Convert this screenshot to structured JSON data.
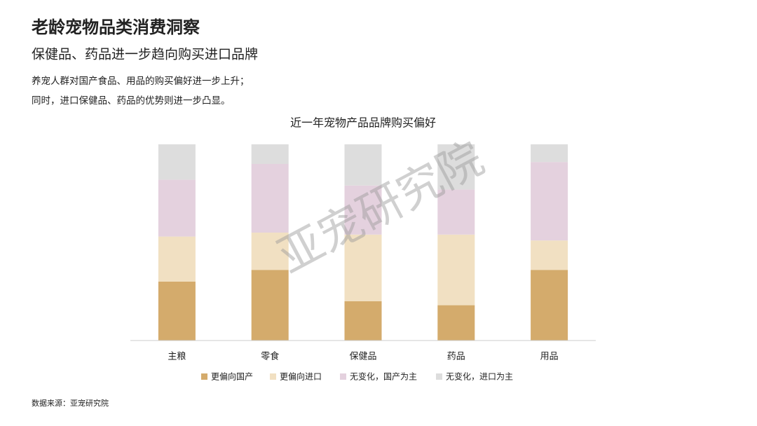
{
  "header": {
    "title": "老龄宠物品类消费洞察",
    "subtitle": "保健品、药品进一步趋向购买进口品牌",
    "lines": [
      "养宠人群对国产食品、用品的购买偏好进一步上升；",
      "同时，进口保健品、药品的优势则进一步凸显。"
    ]
  },
  "chart_data": {
    "type": "stacked_bar",
    "title": "近一年宠物产品品牌购买偏好",
    "categories": [
      "主粮",
      "零食",
      "保健品",
      "药品",
      "用品"
    ],
    "ylim": [
      0,
      100
    ],
    "series": [
      {
        "name": "更偏向国产",
        "color": "#d4ab6c",
        "values": [
          30,
          36,
          20,
          18,
          36
        ]
      },
      {
        "name": "更偏向进口",
        "color": "#f1e0c2",
        "values": [
          23,
          19,
          34,
          36,
          15
        ]
      },
      {
        "name": "无变化，国产为主",
        "color": "#e4d1de",
        "values": [
          29,
          35,
          25,
          23,
          40
        ]
      },
      {
        "name": "无变化，进口为主",
        "color": "#dddddd",
        "values": [
          18,
          10,
          21,
          23,
          9
        ]
      }
    ],
    "watermark": "亚宠研究院"
  },
  "footer": {
    "source": "数据来源：亚宠研究院"
  }
}
